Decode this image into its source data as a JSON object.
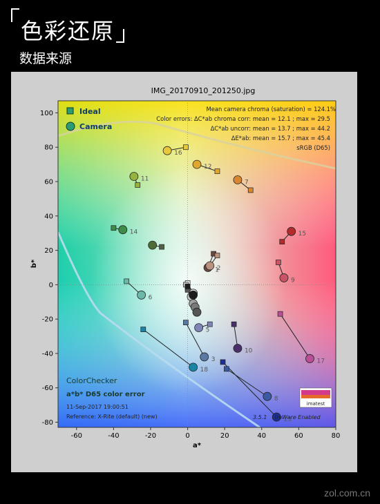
{
  "page": {
    "title": "色彩还原",
    "subtitle": "数据来源",
    "watermark": "zol.com.cn"
  },
  "chart_data": {
    "type": "scatter",
    "title": "IMG_20170910_201250.jpg",
    "xlabel": "a*",
    "ylabel": "b*",
    "xlim": [
      -70,
      80
    ],
    "ylim": [
      -83,
      107
    ],
    "xticks": [
      -60,
      -40,
      -20,
      0,
      20,
      40,
      60,
      80
    ],
    "yticks": [
      -80,
      -60,
      -40,
      -20,
      0,
      20,
      40,
      60,
      80,
      100
    ],
    "legend": [
      {
        "name": "Ideal",
        "marker": "square",
        "color": "#2e9c72"
      },
      {
        "name": "Camera",
        "marker": "circle",
        "color": "#2e9c72"
      }
    ],
    "stats": [
      "Mean camera chroma (saturation) = 124.1%",
      "Color errors:  ΔC*ab chroma corr:  mean = 12.1 ;  max = 29.5",
      "ΔC*ab uncorr:  mean = 13.7 ;  max = 44.2",
      "ΔE*ab:  mean = 15.7 ;  max = 45.4",
      "sRGB (D65)"
    ],
    "info": [
      "ColorChecker",
      "a*b* D65 color error",
      "11-Sep-2017 19:00:51",
      "Reference: X-Rite (default) (new)"
    ],
    "version": "3.5.1",
    "software": "ImWare Enabled",
    "logo_text": "imatest",
    "patches": [
      {
        "id": "1",
        "ideal": [
          14,
          18
        ],
        "camera": [
          11,
          10
        ],
        "color": "#6b4a3e"
      },
      {
        "id": "2",
        "ideal": [
          16,
          17
        ],
        "camera": [
          12,
          11
        ],
        "color": "#b8927f"
      },
      {
        "id": "3",
        "ideal": [
          -1,
          -22
        ],
        "camera": [
          9,
          -42
        ],
        "color": "#5a78a4"
      },
      {
        "id": "4",
        "ideal": [
          -14,
          22
        ],
        "camera": [
          -19,
          23
        ],
        "color": "#4f6b37"
      },
      {
        "id": "5",
        "ideal": [
          12,
          -23
        ],
        "camera": [
          6,
          -25
        ],
        "color": "#7f86b6"
      },
      {
        "id": "6",
        "ideal": [
          -33,
          2
        ],
        "camera": [
          -25,
          -6
        ],
        "color": "#6cb8a8"
      },
      {
        "id": "7",
        "ideal": [
          34,
          55
        ],
        "camera": [
          27,
          61
        ],
        "color": "#d98632"
      },
      {
        "id": "8",
        "ideal": [
          21,
          -49
        ],
        "camera": [
          43,
          -65
        ],
        "color": "#3c5aa2"
      },
      {
        "id": "9",
        "ideal": [
          49,
          13
        ],
        "camera": [
          52,
          4
        ],
        "color": "#c85567"
      },
      {
        "id": "10",
        "ideal": [
          25,
          -23
        ],
        "camera": [
          27,
          -37
        ],
        "color": "#4a2f6a"
      },
      {
        "id": "11",
        "ideal": [
          -27,
          58
        ],
        "camera": [
          -29,
          63
        ],
        "color": "#96b33e"
      },
      {
        "id": "12",
        "ideal": [
          16,
          66
        ],
        "camera": [
          5,
          70
        ],
        "color": "#e0a62e"
      },
      {
        "id": "13",
        "ideal": [
          19,
          -45
        ],
        "camera": [
          48,
          -77
        ],
        "color": "#1e2f92"
      },
      {
        "id": "14",
        "ideal": [
          -40,
          33
        ],
        "camera": [
          -35,
          32
        ],
        "color": "#3e8c48"
      },
      {
        "id": "15",
        "ideal": [
          51,
          25
        ],
        "camera": [
          56,
          31
        ],
        "color": "#b42b2b"
      },
      {
        "id": "16",
        "ideal": [
          -1,
          80
        ],
        "camera": [
          -11,
          78
        ],
        "color": "#e8c83a"
      },
      {
        "id": "17",
        "ideal": [
          50,
          -17
        ],
        "camera": [
          66,
          -43
        ],
        "color": "#ba4f98"
      },
      {
        "id": "18",
        "ideal": [
          -24,
          -26
        ],
        "camera": [
          3,
          -48
        ],
        "color": "#1a84a4"
      },
      {
        "id": "19",
        "ideal": [
          0,
          1
        ],
        "camera": [
          3,
          -5
        ],
        "color": "#e8e8e8"
      },
      {
        "id": "20",
        "ideal": [
          -1,
          0
        ],
        "camera": [
          2,
          -7
        ],
        "color": "#c4c4c4"
      },
      {
        "id": "21",
        "ideal": [
          0,
          -1
        ],
        "camera": [
          3,
          -11
        ],
        "color": "#a0a0a0"
      },
      {
        "id": "22",
        "ideal": [
          0,
          -2
        ],
        "camera": [
          4,
          -13
        ],
        "color": "#7a7a7a"
      },
      {
        "id": "23",
        "ideal": [
          0,
          -3
        ],
        "camera": [
          5,
          -16
        ],
        "color": "#555555"
      },
      {
        "id": "24",
        "ideal": [
          0,
          -1
        ],
        "camera": [
          3,
          -6
        ],
        "color": "#1c1c1c"
      }
    ]
  }
}
